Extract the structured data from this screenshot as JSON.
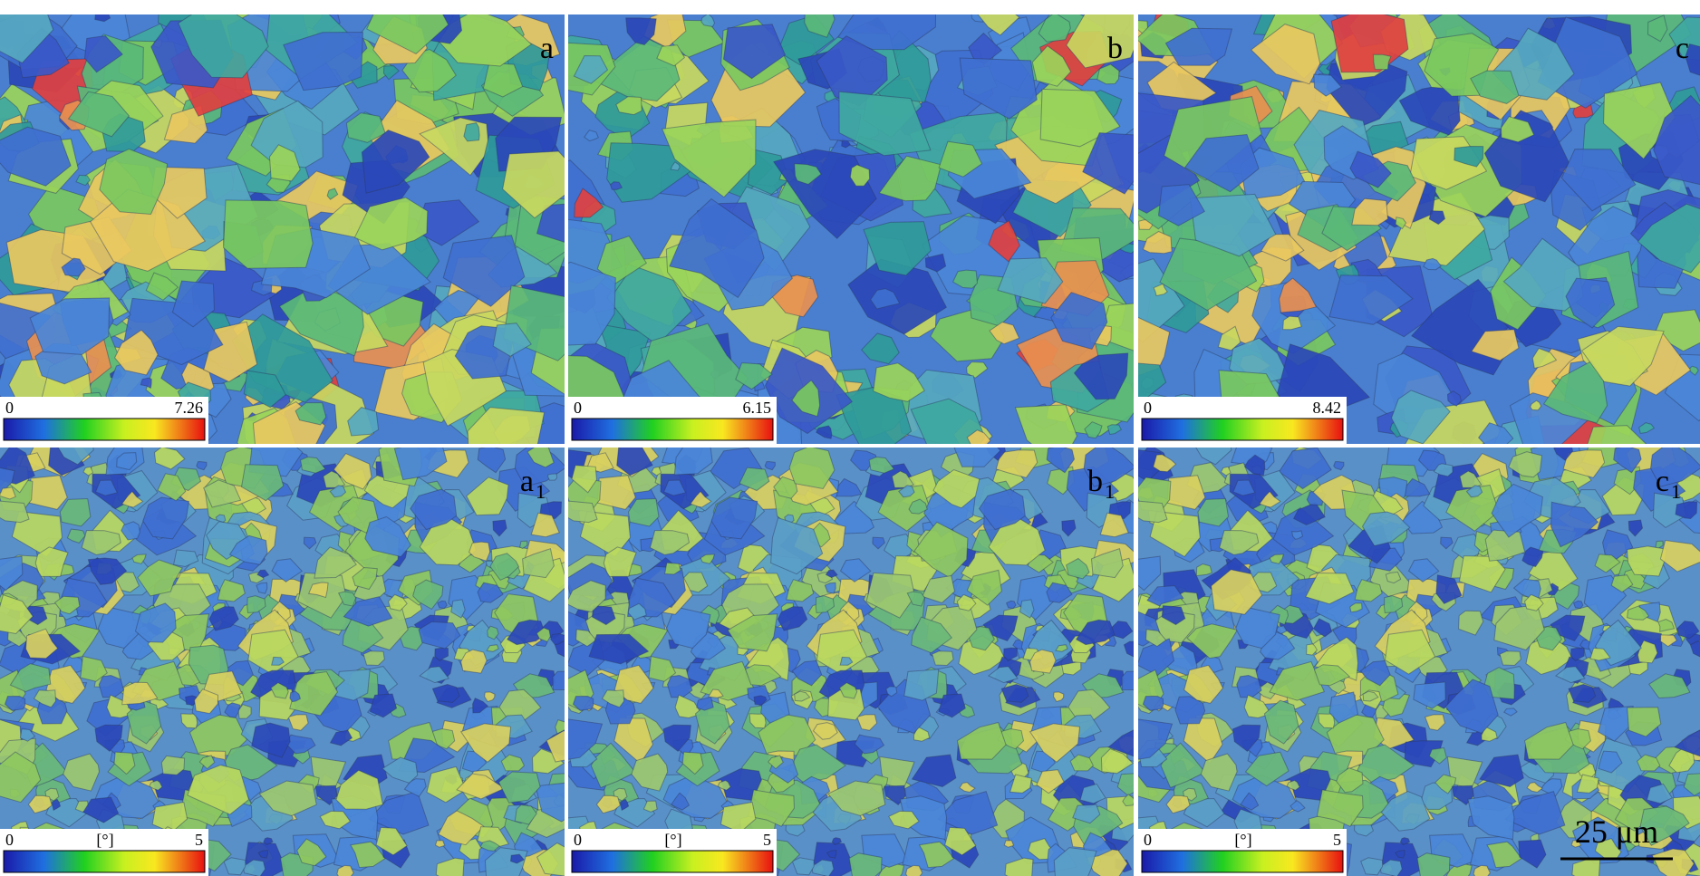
{
  "panels": [
    {
      "label": "a",
      "colorbar": {
        "min": "0",
        "max": "7.26"
      }
    },
    {
      "label": "b",
      "colorbar": {
        "min": "0",
        "max": "6.15"
      }
    },
    {
      "label": "c",
      "colorbar": {
        "min": "0",
        "max": "8.42"
      }
    },
    {
      "label": "a",
      "subscript": "1",
      "colorbar": {
        "min": "0",
        "unit": "[°]",
        "max": "5"
      }
    },
    {
      "label": "b",
      "subscript": "1",
      "colorbar": {
        "min": "0",
        "unit": "[°]",
        "max": "5"
      }
    },
    {
      "label": "c",
      "subscript": "1",
      "colorbar": {
        "min": "0",
        "unit": "[°]",
        "max": "5"
      }
    }
  ],
  "scale_bar": "25 μm"
}
